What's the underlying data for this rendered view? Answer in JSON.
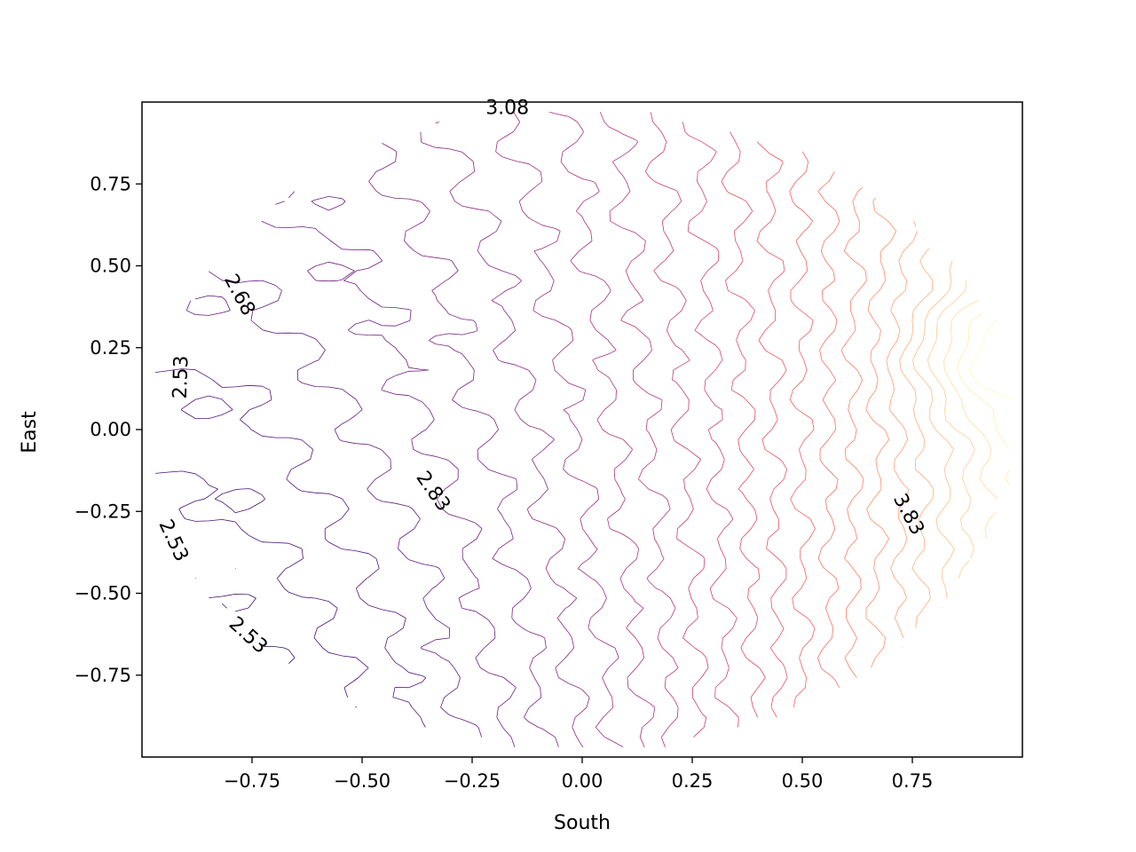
{
  "chart_data": {
    "type": "contour",
    "title": "",
    "xlabel": "South",
    "ylabel": "East",
    "xlim": [
      -1.0,
      1.0
    ],
    "ylim": [
      -1.0,
      1.0
    ],
    "grid": false,
    "colormap": "magma",
    "level_range": [
      2.5,
      4.0
    ],
    "level_step": 0.05,
    "xticks": [
      {
        "value": -0.75,
        "label": "−0.75"
      },
      {
        "value": -0.5,
        "label": "−0.50"
      },
      {
        "value": -0.25,
        "label": "−0.25"
      },
      {
        "value": 0.0,
        "label": "0.00"
      },
      {
        "value": 0.25,
        "label": "0.25"
      },
      {
        "value": 0.5,
        "label": "0.50"
      },
      {
        "value": 0.75,
        "label": "0.75"
      }
    ],
    "yticks": [
      {
        "value": 0.75,
        "label": "0.75"
      },
      {
        "value": 0.5,
        "label": "0.50"
      },
      {
        "value": 0.25,
        "label": "0.25"
      },
      {
        "value": 0.0,
        "label": "0.00"
      },
      {
        "value": -0.25,
        "label": "−0.25"
      },
      {
        "value": -0.5,
        "label": "−0.50"
      },
      {
        "value": -0.75,
        "label": "−0.75"
      }
    ],
    "contour_labels": [
      {
        "text": "3.08",
        "x": -0.17,
        "y": 0.98,
        "rotation": 0
      },
      {
        "text": "2.68",
        "x": -0.78,
        "y": 0.41,
        "rotation": 62
      },
      {
        "text": "2.53",
        "x": -0.91,
        "y": 0.16,
        "rotation": -88
      },
      {
        "text": "2.83",
        "x": -0.34,
        "y": -0.19,
        "rotation": 55
      },
      {
        "text": "3.83",
        "x": 0.74,
        "y": -0.26,
        "rotation": 62
      },
      {
        "text": "2.53",
        "x": -0.93,
        "y": -0.34,
        "rotation": 65
      },
      {
        "text": "2.53",
        "x": -0.76,
        "y": -0.63,
        "rotation": 42
      }
    ]
  }
}
